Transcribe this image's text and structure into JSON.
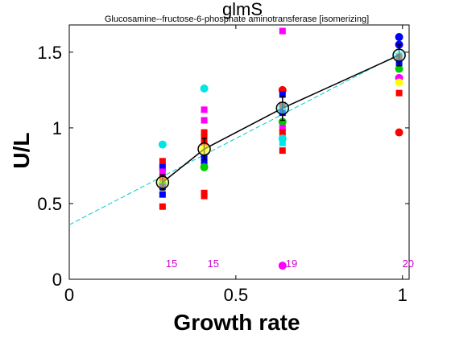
{
  "chart_data": {
    "type": "scatter",
    "title": "glmS",
    "subtitle": "Glucosamine--fructose-6-phosphate aminotransferase [isomerizing]",
    "xlabel": "Growth rate",
    "ylabel": "U/L",
    "xlim": [
      0,
      1.02
    ],
    "ylim": [
      0,
      1.68
    ],
    "xticks": [
      {
        "value": 0,
        "label": "0"
      },
      {
        "value": 0.5,
        "label": "0.5"
      },
      {
        "value": 1,
        "label": "1"
      }
    ],
    "yticks": [
      {
        "value": 0,
        "label": "0"
      },
      {
        "value": 0.5,
        "label": "0.5"
      },
      {
        "value": 1,
        "label": "1"
      },
      {
        "value": 1.5,
        "label": "1.5"
      }
    ],
    "grid": false,
    "points": [
      {
        "x": 0.28,
        "y": 0.89,
        "color": "#00e5e5",
        "shape": "circle"
      },
      {
        "x": 0.28,
        "y": 0.78,
        "color": "#ff0000",
        "shape": "square"
      },
      {
        "x": 0.28,
        "y": 0.74,
        "color": "#0000ff",
        "shape": "square"
      },
      {
        "x": 0.28,
        "y": 0.71,
        "color": "#ff00ff",
        "shape": "square"
      },
      {
        "x": 0.28,
        "y": 0.67,
        "color": "#ff0000",
        "shape": "square"
      },
      {
        "x": 0.28,
        "y": 0.63,
        "color": "#00cc00",
        "shape": "circle"
      },
      {
        "x": 0.28,
        "y": 0.61,
        "color": "#0000ff",
        "shape": "square"
      },
      {
        "x": 0.28,
        "y": 0.56,
        "color": "#0000ff",
        "shape": "square"
      },
      {
        "x": 0.28,
        "y": 0.48,
        "color": "#ff0000",
        "shape": "square"
      },
      {
        "x": 0.405,
        "y": 1.26,
        "color": "#00e5e5",
        "shape": "circle"
      },
      {
        "x": 0.405,
        "y": 1.12,
        "color": "#ff00ff",
        "shape": "square"
      },
      {
        "x": 0.405,
        "y": 1.05,
        "color": "#ff00ff",
        "shape": "square"
      },
      {
        "x": 0.405,
        "y": 0.97,
        "color": "#ff0000",
        "shape": "square"
      },
      {
        "x": 0.405,
        "y": 0.94,
        "color": "#ff0000",
        "shape": "square"
      },
      {
        "x": 0.405,
        "y": 0.9,
        "color": "#ff0000",
        "shape": "square"
      },
      {
        "x": 0.405,
        "y": 0.86,
        "color": "#ffff00",
        "shape": "circle"
      },
      {
        "x": 0.405,
        "y": 0.8,
        "color": "#0000ff",
        "shape": "square"
      },
      {
        "x": 0.405,
        "y": 0.77,
        "color": "#0000ff",
        "shape": "square"
      },
      {
        "x": 0.405,
        "y": 0.74,
        "color": "#00cc00",
        "shape": "circle"
      },
      {
        "x": 0.405,
        "y": 0.57,
        "color": "#ff0000",
        "shape": "square"
      },
      {
        "x": 0.405,
        "y": 0.55,
        "color": "#ff0000",
        "shape": "square"
      },
      {
        "x": 0.64,
        "y": 1.64,
        "color": "#ff00ff",
        "shape": "square"
      },
      {
        "x": 0.64,
        "y": 1.25,
        "color": "#ff0000",
        "shape": "circle"
      },
      {
        "x": 0.64,
        "y": 1.22,
        "color": "#0000ff",
        "shape": "square"
      },
      {
        "x": 0.64,
        "y": 1.15,
        "color": "#ff0000",
        "shape": "square"
      },
      {
        "x": 0.64,
        "y": 1.1,
        "color": "#0000ff",
        "shape": "square"
      },
      {
        "x": 0.64,
        "y": 1.04,
        "color": "#00cc00",
        "shape": "circle"
      },
      {
        "x": 0.64,
        "y": 1.0,
        "color": "#ff00ff",
        "shape": "square"
      },
      {
        "x": 0.64,
        "y": 0.97,
        "color": "#ff0000",
        "shape": "square"
      },
      {
        "x": 0.64,
        "y": 0.93,
        "color": "#00e5e5",
        "shape": "circle"
      },
      {
        "x": 0.64,
        "y": 0.9,
        "color": "#00e5e5",
        "shape": "square"
      },
      {
        "x": 0.64,
        "y": 0.85,
        "color": "#ff0000",
        "shape": "square"
      },
      {
        "x": 0.64,
        "y": 0.09,
        "color": "#ff00ff",
        "shape": "circle"
      },
      {
        "x": 0.99,
        "y": 1.6,
        "color": "#0000ff",
        "shape": "circle"
      },
      {
        "x": 0.99,
        "y": 1.55,
        "color": "#0000ff",
        "shape": "circle"
      },
      {
        "x": 0.99,
        "y": 1.47,
        "color": "#ff0000",
        "shape": "square"
      },
      {
        "x": 0.99,
        "y": 1.43,
        "color": "#0000ff",
        "shape": "square"
      },
      {
        "x": 0.99,
        "y": 1.39,
        "color": "#00cc00",
        "shape": "circle"
      },
      {
        "x": 0.99,
        "y": 1.33,
        "color": "#ff00ff",
        "shape": "circle"
      },
      {
        "x": 0.99,
        "y": 1.3,
        "color": "#ffff00",
        "shape": "circle"
      },
      {
        "x": 0.99,
        "y": 1.23,
        "color": "#ff0000",
        "shape": "square"
      },
      {
        "x": 0.99,
        "y": 0.97,
        "color": "#ff0000",
        "shape": "circle"
      }
    ],
    "mean_line": {
      "points": [
        {
          "x": 0.28,
          "y": 0.64,
          "err": 0.05
        },
        {
          "x": 0.405,
          "y": 0.86,
          "err": 0.07
        },
        {
          "x": 0.64,
          "y": 1.13,
          "err": 0.08
        },
        {
          "x": 0.99,
          "y": 1.48,
          "err": 0.07
        }
      ],
      "color": "#000000"
    },
    "fit_line": {
      "x": [
        0,
        1
      ],
      "y": [
        0.36,
        1.5
      ],
      "color": "#00cccc",
      "style": "dashed"
    },
    "mean_marker_fills": [
      "#ffff66",
      "#ffff66",
      "#66ffff",
      "#66ffff"
    ],
    "counts": [
      {
        "x": 0.28,
        "label": "15"
      },
      {
        "x": 0.405,
        "label": "15"
      },
      {
        "x": 0.64,
        "label": "19"
      },
      {
        "x": 0.99,
        "label": "20"
      }
    ],
    "count_color": "#cc00cc"
  }
}
